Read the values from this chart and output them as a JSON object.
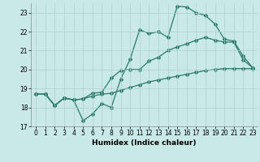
{
  "title": "",
  "xlabel": "Humidex (Indice chaleur)",
  "xlim": [
    -0.5,
    23.5
  ],
  "ylim": [
    17,
    23.5
  ],
  "yticks": [
    17,
    18,
    19,
    20,
    21,
    22,
    23
  ],
  "xticks": [
    0,
    1,
    2,
    3,
    4,
    5,
    6,
    7,
    8,
    9,
    10,
    11,
    12,
    13,
    14,
    15,
    16,
    17,
    18,
    19,
    20,
    21,
    22,
    23
  ],
  "bg_color": "#c9e8e8",
  "line_color": "#2a7a6a",
  "grid_color": "#b0d0d0",
  "line1_x": [
    0,
    1,
    2,
    3,
    4,
    5,
    6,
    7,
    8,
    9,
    10,
    11,
    12,
    13,
    14,
    15,
    16,
    17,
    18,
    19,
    20,
    21,
    22,
    23
  ],
  "line1_y": [
    18.7,
    18.7,
    18.1,
    18.5,
    18.4,
    17.3,
    17.65,
    18.2,
    18.0,
    19.5,
    20.55,
    22.1,
    21.9,
    22.0,
    21.7,
    23.35,
    23.3,
    23.0,
    22.85,
    22.4,
    21.6,
    21.5,
    20.7,
    20.1
  ],
  "line2_x": [
    0,
    1,
    2,
    3,
    4,
    5,
    6,
    7,
    8,
    9,
    10,
    11,
    12,
    13,
    14,
    15,
    16,
    17,
    18,
    19,
    20,
    21,
    22,
    23
  ],
  "line2_y": [
    18.7,
    18.7,
    18.1,
    18.5,
    18.4,
    18.45,
    18.75,
    18.8,
    19.55,
    19.95,
    20.0,
    20.0,
    20.45,
    20.65,
    21.0,
    21.2,
    21.35,
    21.55,
    21.7,
    21.55,
    21.45,
    21.45,
    20.5,
    20.1
  ],
  "line3_x": [
    0,
    1,
    2,
    3,
    4,
    5,
    6,
    7,
    8,
    9,
    10,
    11,
    12,
    13,
    14,
    15,
    16,
    17,
    18,
    19,
    20,
    21,
    22,
    23
  ],
  "line3_y": [
    18.7,
    18.7,
    18.1,
    18.5,
    18.4,
    18.45,
    18.6,
    18.7,
    18.75,
    18.9,
    19.05,
    19.2,
    19.35,
    19.45,
    19.55,
    19.65,
    19.75,
    19.85,
    19.95,
    20.0,
    20.05,
    20.05,
    20.05,
    20.05
  ],
  "marker": "D",
  "markersize": 2.0,
  "linewidth": 0.9
}
